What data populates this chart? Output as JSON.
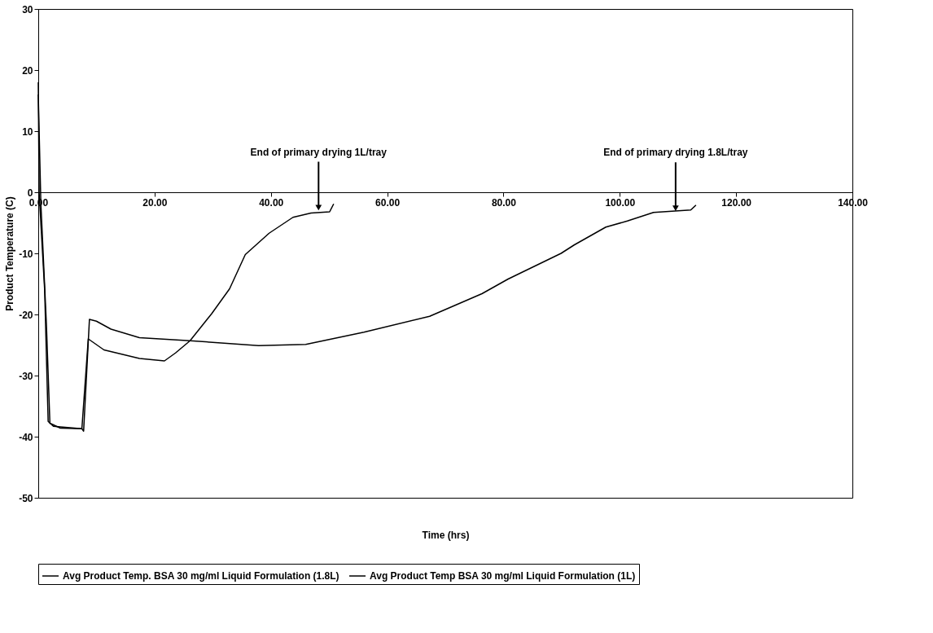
{
  "chart_data": {
    "type": "line",
    "xlabel": "Time (hrs)",
    "ylabel": "Product Temperature  (C)",
    "xlim": [
      0,
      140
    ],
    "ylim": [
      -50,
      30
    ],
    "xticks": [
      {
        "value": 0,
        "label": "0.00"
      },
      {
        "value": 20,
        "label": "20.00"
      },
      {
        "value": 40,
        "label": "40.00"
      },
      {
        "value": 60,
        "label": "60.00"
      },
      {
        "value": 80,
        "label": "80.00"
      },
      {
        "value": 100,
        "label": "100.00"
      },
      {
        "value": 120,
        "label": "120.00"
      },
      {
        "value": 140,
        "label": "140.00"
      }
    ],
    "yticks": [
      -50,
      -40,
      -30,
      -20,
      -10,
      0,
      10,
      20,
      30
    ],
    "grid": false,
    "legend": "bottom",
    "marker": "none",
    "line_style": "solid",
    "series": [
      {
        "name": "Avg Product Temp. BSA 30 mg/ml Liquid Formulation (1.8L)",
        "color": "#000000",
        "x": [
          0,
          0.15,
          1.1,
          1.7,
          2.6,
          7.5,
          7.8,
          8.8,
          10.0,
          12.5,
          17.4,
          26.1,
          37.9,
          46,
          56,
          67.3,
          76.3,
          80.8,
          89.9,
          92.2,
          97.6,
          101.3,
          105.8,
          112.2,
          113.1
        ],
        "values": [
          18,
          -0.1,
          -16,
          -37.5,
          -38.3,
          -38.7,
          -39.1,
          -20.8,
          -21.1,
          -22.4,
          -23.8,
          -24.3,
          -25.1,
          -24.9,
          -22.9,
          -20.3,
          -16.6,
          -14.2,
          -10.0,
          -8.6,
          -5.7,
          -4.7,
          -3.3,
          -2.9,
          -2.1
        ]
      },
      {
        "name": "Avg Product Temp BSA 30 mg/ml Liquid Formulation (1L)",
        "color": "#000000",
        "x": [
          0,
          0.45,
          1.4,
          2.0,
          3.8,
          7.5,
          8.6,
          11.3,
          17.4,
          21.7,
          23.6,
          26.1,
          29.8,
          32.9,
          35.6,
          39.7,
          43.8,
          46.9,
          50.1,
          50.8
        ],
        "values": [
          16,
          -1.9,
          -21.6,
          -37.8,
          -38.6,
          -38.7,
          -24.0,
          -25.8,
          -27.2,
          -27.6,
          -26.3,
          -24.3,
          -19.9,
          -15.8,
          -10.2,
          -6.7,
          -4.1,
          -3.4,
          -3.2,
          -1.9
        ]
      }
    ],
    "annotations": [
      {
        "text": "End of primary drying 1L/tray",
        "x": 48.2,
        "y": -3.0
      },
      {
        "text": "End of primary drying 1.8L/tray",
        "x": 109.6,
        "y": -3.1
      }
    ]
  }
}
